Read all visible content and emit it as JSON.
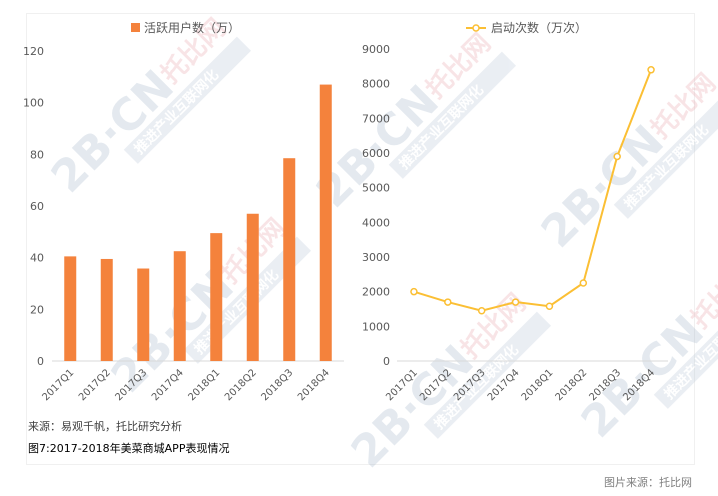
{
  "chart_data": [
    {
      "type": "bar",
      "title": "",
      "legend": "活跃用户数（万）",
      "xlabel": "",
      "ylabel": "",
      "categories": [
        "2017Q1",
        "2017Q2",
        "2017Q3",
        "2017Q4",
        "2018Q1",
        "2018Q2",
        "2018Q3",
        "2018Q4"
      ],
      "series": [
        {
          "name": "活跃用户数（万）",
          "values": [
            40.5,
            39.5,
            35.8,
            42.5,
            49.5,
            57,
            78.5,
            107
          ]
        }
      ],
      "ylim": [
        0,
        120
      ],
      "yticks": [
        0,
        20,
        40,
        60,
        80,
        100,
        120
      ],
      "color": "#f4823c",
      "grid": false,
      "legend_position": "top"
    },
    {
      "type": "line",
      "title": "",
      "legend": "启动次数（万次）",
      "xlabel": "",
      "ylabel": "",
      "categories": [
        "2017Q1",
        "2017Q2",
        "2017Q3",
        "2017Q4",
        "2018Q1",
        "2018Q2",
        "2018Q3",
        "2018Q4"
      ],
      "series": [
        {
          "name": "启动次数（万次）",
          "values": [
            2000,
            1700,
            1450,
            1700,
            1580,
            2250,
            5900,
            8400
          ]
        }
      ],
      "ylim": [
        0,
        9000
      ],
      "yticks": [
        0,
        1000,
        2000,
        3000,
        4000,
        5000,
        6000,
        7000,
        8000,
        9000
      ],
      "color": "#fbbf34",
      "grid": false,
      "legend_position": "top"
    }
  ],
  "source_text": "来源：易观千帆，托比研究分析",
  "figure_caption": "图7:2017-2018年美菜商城APP表现情况",
  "image_source": "图片来源：托比网",
  "watermark": {
    "big_text": "2B·CN",
    "brand_text": "托比网",
    "slogan": "推进产业互联网化"
  }
}
